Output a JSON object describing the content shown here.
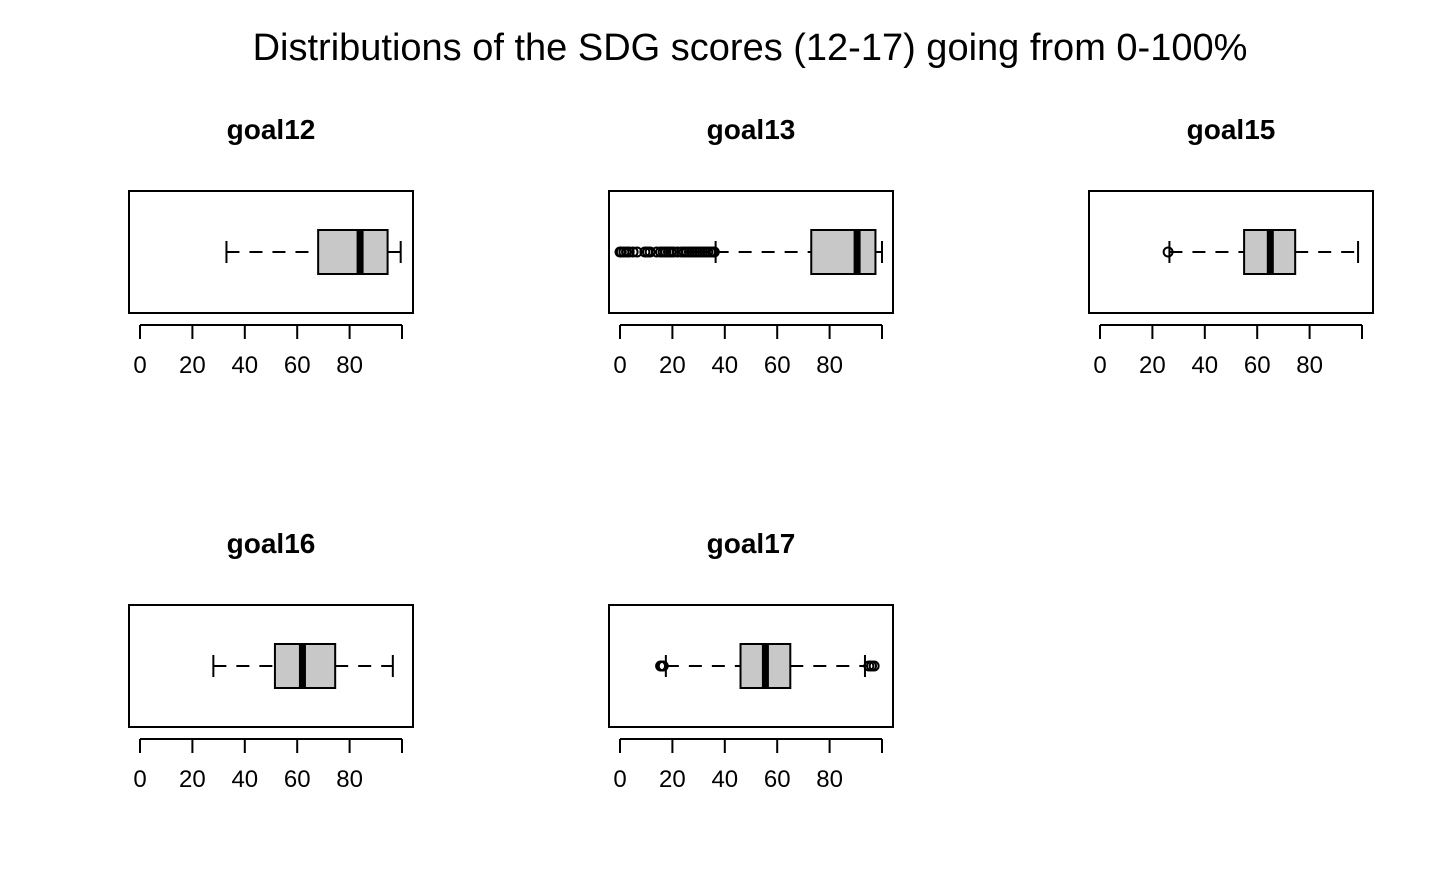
{
  "title": "Distributions of the SDG scores (12-17) going from 0-100%",
  "chart_data": [
    {
      "type": "boxplot",
      "orientation": "horizontal",
      "title": "goal12",
      "xlim": [
        0,
        100
      ],
      "ticks": [
        0,
        20,
        40,
        60,
        80
      ],
      "tick_labels": [
        "0",
        "20",
        "40",
        "60",
        "80"
      ],
      "whisker_low": 33,
      "q1": 68,
      "median": 84,
      "q3": 94.5,
      "whisker_high": 99.5,
      "outliers": []
    },
    {
      "type": "boxplot",
      "orientation": "horizontal",
      "title": "goal13",
      "xlim": [
        0,
        100
      ],
      "ticks": [
        0,
        20,
        40,
        60,
        80
      ],
      "tick_labels": [
        "0",
        "20",
        "40",
        "60",
        "80"
      ],
      "whisker_low": 36.5,
      "q1": 73,
      "median": 90.5,
      "q3": 97.5,
      "whisker_high": 100,
      "outliers": [
        0,
        0.5,
        1.5,
        2.5,
        3.5,
        5,
        6.5,
        9.5,
        10.5,
        11.5,
        14,
        15.5,
        16.5,
        17.5,
        18.5,
        19.5,
        20.5,
        22,
        23.5,
        24.5,
        25.5,
        26.5,
        27.5,
        28.5,
        29.5,
        30.5,
        31.5,
        32.5,
        33.5,
        34.5,
        35.5,
        36
      ]
    },
    {
      "type": "boxplot",
      "orientation": "horizontal",
      "title": "goal15",
      "xlim": [
        0,
        100
      ],
      "ticks": [
        0,
        20,
        40,
        60,
        80
      ],
      "tick_labels": [
        "0",
        "20",
        "40",
        "60",
        "80"
      ],
      "whisker_low": 26.5,
      "q1": 55,
      "median": 65,
      "q3": 74.5,
      "whisker_high": 98.5,
      "outliers": [
        26
      ]
    },
    {
      "type": "boxplot",
      "orientation": "horizontal",
      "title": "goal16",
      "xlim": [
        0,
        100
      ],
      "ticks": [
        0,
        20,
        40,
        60,
        80
      ],
      "tick_labels": [
        "0",
        "20",
        "40",
        "60",
        "80"
      ],
      "whisker_low": 28,
      "q1": 51.5,
      "median": 62,
      "q3": 74.5,
      "whisker_high": 96.5,
      "outliers": []
    },
    {
      "type": "boxplot",
      "orientation": "horizontal",
      "title": "goal17",
      "xlim": [
        0,
        100
      ],
      "ticks": [
        0,
        20,
        40,
        60,
        80
      ],
      "tick_labels": [
        "0",
        "20",
        "40",
        "60",
        "80"
      ],
      "whisker_low": 17.5,
      "q1": 46,
      "median": 55.5,
      "q3": 65,
      "whisker_high": 93.5,
      "outliers": [
        15.5,
        16,
        16.5,
        95,
        96,
        97
      ]
    }
  ]
}
